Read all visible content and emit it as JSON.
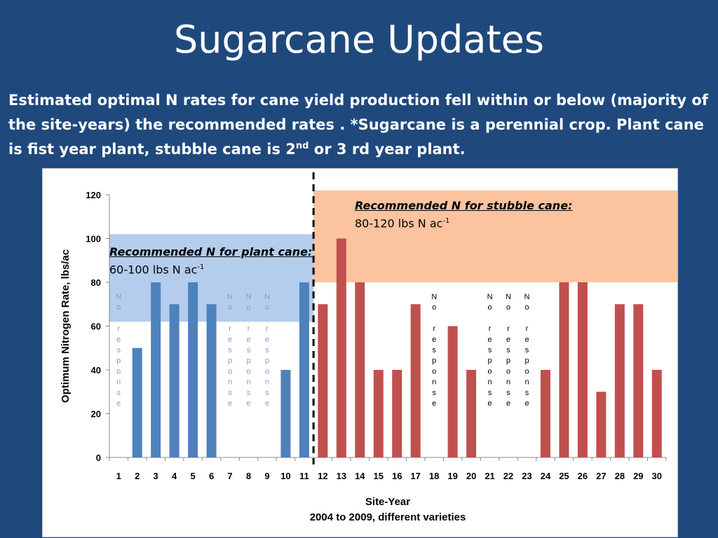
{
  "slide": {
    "title": "Sugarcane Updates",
    "body_before_sup": "Estimated optimal N rates for cane yield production fell within or below  (majority of the site-years) the recommended rates .  *Sugarcane is a perennial crop.  Plant cane is fist year plant, stubble cane is 2",
    "body_sup": "nd",
    "body_after_sup": " or 3 rd year plant."
  },
  "chart_data": {
    "type": "bar",
    "ylabel": "Optimum Nitrogen Rate, lbs/ac",
    "xlabel": "Site-Year",
    "xlabel_line2": "2004 to 2009, different varieties",
    "ylim": [
      0,
      120
    ],
    "yticks": [
      "0",
      "20",
      "40",
      "60",
      "80",
      "100",
      "120"
    ],
    "categories": [
      "1",
      "2",
      "3",
      "4",
      "5",
      "6",
      "7",
      "8",
      "9",
      "10",
      "11",
      "12",
      "13",
      "14",
      "15",
      "16",
      "17",
      "18",
      "19",
      "20",
      "21",
      "22",
      "23",
      "24",
      "25",
      "26",
      "27",
      "28",
      "29",
      "30"
    ],
    "values": [
      null,
      50,
      80,
      70,
      80,
      70,
      null,
      null,
      null,
      40,
      80,
      70,
      100,
      80,
      40,
      40,
      70,
      null,
      60,
      40,
      null,
      null,
      null,
      40,
      80,
      80,
      30,
      70,
      70,
      40
    ],
    "plant_cane_sites": 11,
    "no_response_sites": [
      "1",
      "7",
      "8",
      "9",
      "18",
      "21",
      "22",
      "23"
    ],
    "no_response_text": "No response",
    "colors": {
      "plant_cane": "#4f81bd",
      "stubble_cane": "#c0504d",
      "plant_band": "#a7c4ea",
      "stubble_band": "#fbb98e",
      "no_response_plant": "#7f9fcf",
      "no_response_stubble": "#000000"
    },
    "bands": [
      {
        "name": "plant",
        "y_range": [
          62,
          102
        ],
        "label": "Recommended N for plant cane:",
        "value_text": "60-100 lbs N ac",
        "value_sup": "-1"
      },
      {
        "name": "stubble",
        "y_range": [
          80,
          122
        ],
        "label": "Recommended N for stubble cane:",
        "value_text": "80-120 lbs N ac",
        "value_sup": "-1"
      }
    ],
    "divider": "dashed line between sites 11 and 12",
    "grid": false,
    "legend": "none"
  }
}
